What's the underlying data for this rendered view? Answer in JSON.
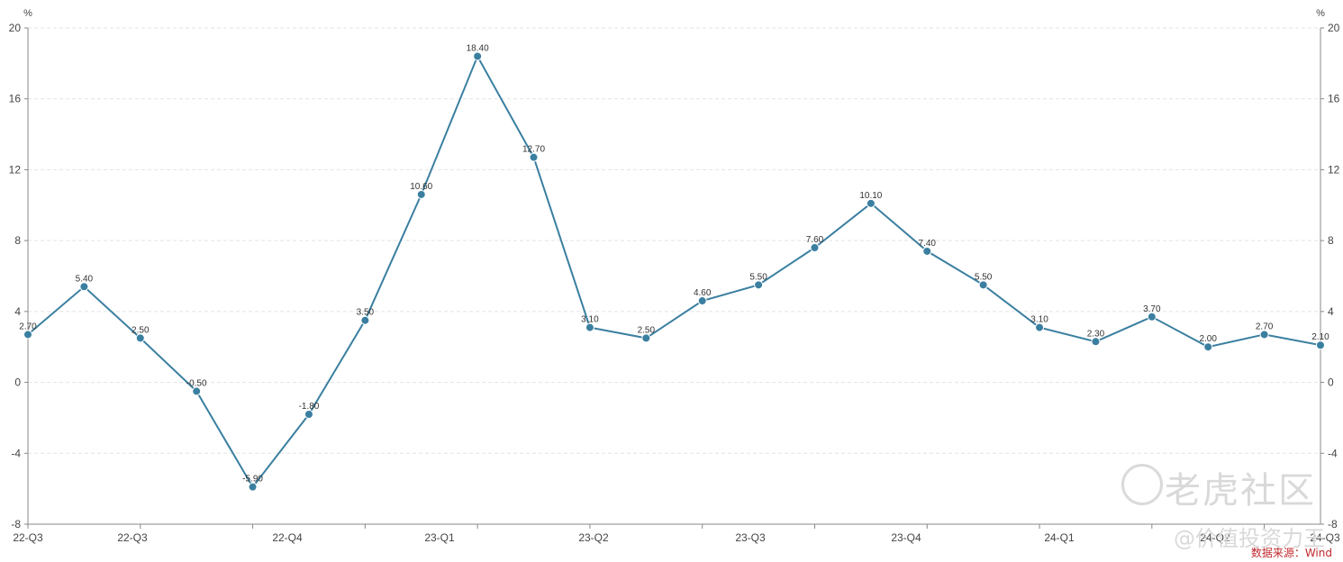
{
  "chart_data": {
    "type": "line",
    "ylabel_left": "%",
    "ylabel_right": "%",
    "ylim": [
      -8,
      20
    ],
    "y_ticks": [
      -8,
      -4,
      0,
      4,
      8,
      12,
      16,
      20
    ],
    "x_tick_labels": [
      "22-Q3",
      "22-Q3",
      "22-Q4",
      "23-Q1",
      "23-Q2",
      "23-Q3",
      "23-Q4",
      "24-Q1",
      "24-Q2",
      "24-Q3"
    ],
    "grid": true,
    "series": [
      {
        "color": "#3a7fa0",
        "values": [
          2.7,
          5.4,
          2.5,
          -0.5,
          -5.9,
          -1.8,
          3.5,
          10.6,
          18.4,
          12.7,
          3.1,
          2.5,
          4.6,
          5.5,
          7.6,
          10.1,
          7.4,
          5.5,
          3.1,
          2.3,
          3.7,
          2.0,
          2.7,
          2.1
        ],
        "labels": [
          "2.70",
          "5.40",
          "2.50",
          "-0.50",
          "-5.90",
          "-1.80",
          "3.50",
          "10.60",
          "18.40",
          "12.70",
          "3.10",
          "2.50",
          "4.60",
          "5.50",
          "7.60",
          "10.10",
          "7.40",
          "5.50",
          "3.10",
          "2.30",
          "3.70",
          "2.00",
          "2.70",
          "2.10"
        ]
      }
    ]
  },
  "watermark": {
    "logo_text": "老虎社区",
    "sub_text": "@价值投资力王"
  },
  "source_text": "数据来源：Wind"
}
